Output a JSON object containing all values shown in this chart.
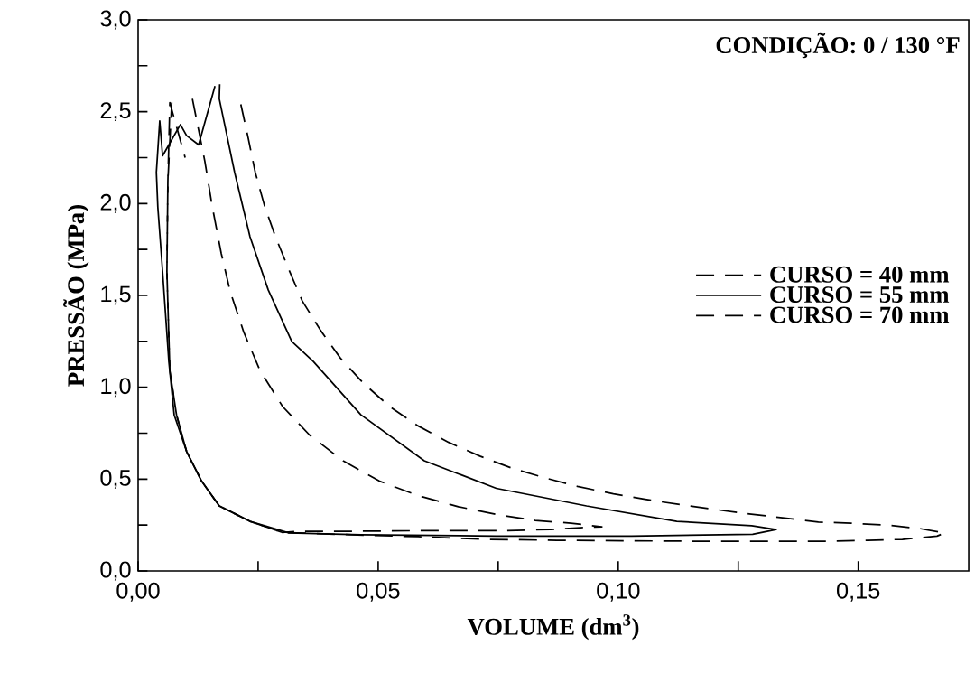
{
  "chart_data": {
    "type": "line",
    "xlabel": "VOLUME (dm$^{3}$)",
    "ylabel": "PRESSÃO (MPa)",
    "annotations": [
      "CONDIÇÃO: 0 / 130 °F"
    ],
    "xlim": [
      0,
      0.173
    ],
    "ylim": [
      0,
      3.0
    ],
    "xticks": [
      {
        "value": 0,
        "label": "0,00"
      },
      {
        "value": 0.025,
        "label": null
      },
      {
        "value": 0.05,
        "label": "0,05"
      },
      {
        "value": 0.075,
        "label": null
      },
      {
        "value": 0.1,
        "label": "0,10"
      },
      {
        "value": 0.125,
        "label": null
      },
      {
        "value": 0.15,
        "label": "0,15"
      }
    ],
    "yticks": [
      {
        "value": 0,
        "label": "0,0"
      },
      {
        "value": 0.25,
        "label": null
      },
      {
        "value": 0.5,
        "label": "0,5"
      },
      {
        "value": 0.75,
        "label": null
      },
      {
        "value": 1.0,
        "label": "1,0"
      },
      {
        "value": 1.25,
        "label": null
      },
      {
        "value": 1.5,
        "label": "1,5"
      },
      {
        "value": 1.75,
        "label": null
      },
      {
        "value": 2.0,
        "label": "2,0"
      },
      {
        "value": 2.25,
        "label": null
      },
      {
        "value": 2.5,
        "label": "2,5"
      },
      {
        "value": 2.75,
        "label": null
      },
      {
        "value": 3.0,
        "label": "3,0"
      }
    ],
    "legend": "right",
    "marker": "none",
    "series": [
      {
        "name": "CURSO = 40 mm",
        "color": "#000000",
        "line_style": "dashed",
        "x": [
          0.0113,
          0.0139,
          0.0154,
          0.0173,
          0.0192,
          0.022,
          0.0254,
          0.0301,
          0.0357,
          0.0427,
          0.0502,
          0.0583,
          0.0667,
          0.0752,
          0.0827,
          0.0902,
          0.0966,
          0.0921,
          0.0859,
          0.077,
          0.062,
          0.0432,
          0.0338,
          0.03,
          0.0233,
          0.0169,
          0.0132,
          0.0101,
          0.008,
          0.0066,
          0.006,
          0.0062,
          0.0066,
          0.0098
        ],
        "values": [
          2.57,
          2.23,
          1.99,
          1.73,
          1.52,
          1.3,
          1.09,
          0.895,
          0.74,
          0.6,
          0.49,
          0.41,
          0.35,
          0.305,
          0.275,
          0.26,
          0.24,
          0.236,
          0.226,
          0.22,
          0.22,
          0.216,
          0.216,
          0.21,
          0.27,
          0.354,
          0.49,
          0.65,
          0.85,
          1.09,
          1.63,
          2.12,
          2.55,
          2.25
        ]
      },
      {
        "name": "CURSO = 55 mm",
        "color": "#000000",
        "line_style": "solid",
        "x": [
          0.017,
          0.0169,
          0.0201,
          0.0233,
          0.0271,
          0.032,
          0.0365,
          0.0464,
          0.0596,
          0.0746,
          0.0934,
          0.1122,
          0.1278,
          0.1329,
          0.128,
          0.1028,
          0.0746,
          0.0464,
          0.0314,
          0.0233,
          0.0169,
          0.0132,
          0.0101,
          0.0075,
          0.0064,
          0.0051,
          0.0041,
          0.0038,
          0.0045,
          0.0051,
          0.0088,
          0.0101,
          0.0126,
          0.016
        ],
        "values": [
          2.65,
          2.57,
          2.17,
          1.82,
          1.53,
          1.25,
          1.14,
          0.85,
          0.6,
          0.45,
          0.354,
          0.27,
          0.246,
          0.226,
          0.2,
          0.19,
          0.19,
          0.197,
          0.207,
          0.27,
          0.354,
          0.49,
          0.65,
          0.85,
          1.14,
          1.63,
          1.98,
          2.17,
          2.45,
          2.26,
          2.43,
          2.37,
          2.32,
          2.64
        ]
      },
      {
        "name": "CURSO = 70 mm",
        "color": "#000000",
        "line_style": "dashed",
        "x": [
          0.0214,
          0.0229,
          0.0244,
          0.0263,
          0.0286,
          0.0314,
          0.0342,
          0.038,
          0.0421,
          0.047,
          0.0524,
          0.0583,
          0.0647,
          0.0712,
          0.0778,
          0.085,
          0.0915,
          0.099,
          0.1056,
          0.1132,
          0.1201,
          0.1273,
          0.1342,
          0.1417,
          0.1485,
          0.156,
          0.163,
          0.168,
          0.1664,
          0.1592,
          0.152,
          0.1447,
          0.1305,
          0.116,
          0.0872,
          0.0727,
          0.0583,
          0.0445,
          0.03,
          0.0233,
          0.0169,
          0.0132,
          0.0101,
          0.008,
          0.0066,
          0.006,
          0.0062,
          0.007
        ],
        "values": [
          2.54,
          2.36,
          2.17,
          1.99,
          1.82,
          1.64,
          1.47,
          1.31,
          1.16,
          1.02,
          0.895,
          0.79,
          0.7,
          0.625,
          0.56,
          0.505,
          0.46,
          0.42,
          0.39,
          0.36,
          0.335,
          0.31,
          0.29,
          0.266,
          0.26,
          0.25,
          0.23,
          0.207,
          0.19,
          0.172,
          0.167,
          0.162,
          0.162,
          0.162,
          0.167,
          0.172,
          0.187,
          0.197,
          0.21,
          0.27,
          0.354,
          0.49,
          0.65,
          0.85,
          1.09,
          1.63,
          2.12,
          2.55
        ]
      }
    ]
  }
}
